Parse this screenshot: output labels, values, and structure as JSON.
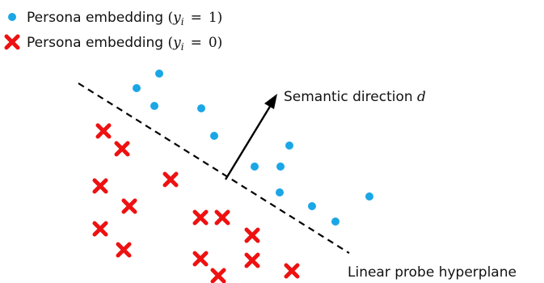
{
  "legend": {
    "positive": {
      "text": "Persona embedding",
      "open": "(",
      "var": "y",
      "sub": "i",
      "eq": "=",
      "value": "1",
      "close": ")"
    },
    "negative": {
      "text": "Persona embedding",
      "open": "(",
      "var": "y",
      "sub": "i",
      "eq": "=",
      "value": "0",
      "close": ")"
    }
  },
  "direction_label": {
    "text": "Semantic direction",
    "var": "d"
  },
  "hyperplane_label": "Linear probe hyperplane",
  "colors": {
    "positive": "#1BA6E6",
    "negative": "#EE1111",
    "line": "#000000"
  }
}
